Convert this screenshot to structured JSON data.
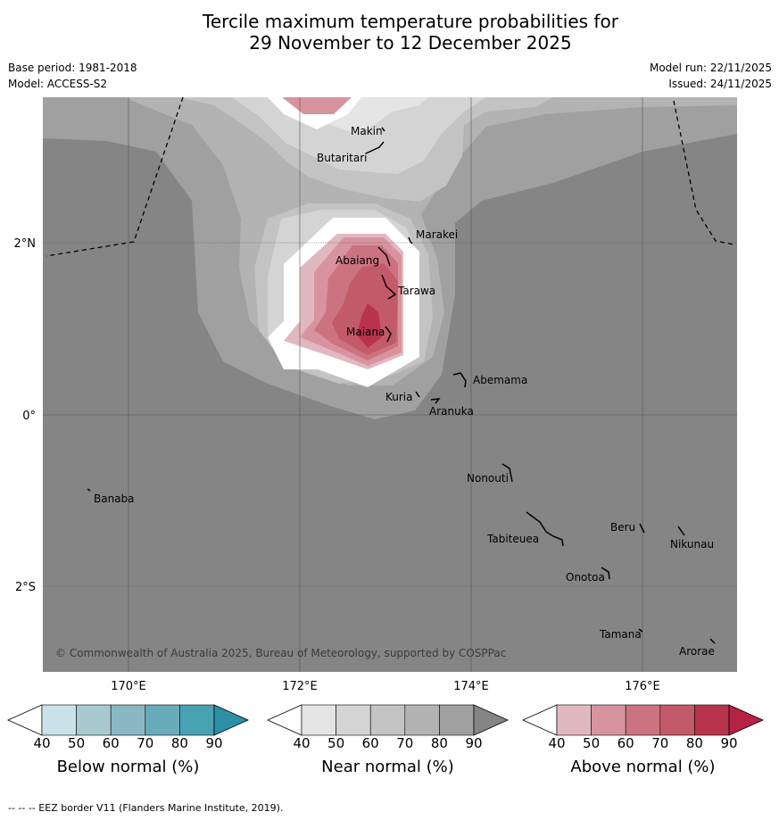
{
  "title": {
    "line1": "Tercile maximum temperature probabilities for",
    "line2": "29 November to 12 December 2025"
  },
  "meta": {
    "base_period": "Base period: 1981-2018",
    "model": "Model: ACCESS-S2",
    "model_run": "Model run: 22/11/2025",
    "issued": "Issued: 24/11/2025"
  },
  "axes": {
    "lat_labels": [
      "2°N",
      "0°",
      "2°S"
    ],
    "lon_labels": [
      "170°E",
      "172°E",
      "174°E",
      "176°E"
    ]
  },
  "places": [
    {
      "name": "Makin"
    },
    {
      "name": "Butaritari"
    },
    {
      "name": "Marakei"
    },
    {
      "name": "Abaiang"
    },
    {
      "name": "Tarawa"
    },
    {
      "name": "Maiana"
    },
    {
      "name": "Abemama"
    },
    {
      "name": "Kuria"
    },
    {
      "name": "Aranuka"
    },
    {
      "name": "Nonouti"
    },
    {
      "name": "Banaba"
    },
    {
      "name": "Beru"
    },
    {
      "name": "Tabiteuea"
    },
    {
      "name": "Nikunau"
    },
    {
      "name": "Onotoa"
    },
    {
      "name": "Tamana"
    },
    {
      "name": "Arorae"
    }
  ],
  "copyright": "© Commonwealth of Australia 2025, Bureau of Meteorology, supported by COSPPac",
  "legends": [
    {
      "label": "Below normal (%)",
      "ticks": [
        "40",
        "50",
        "60",
        "70",
        "80",
        "90"
      ],
      "colors": [
        "#ffffff",
        "#c9e2ea",
        "#a8c9d0",
        "#89b8c4",
        "#6aabba",
        "#48a2b4",
        "#2c8fa6"
      ]
    },
    {
      "label": "Near normal (%)",
      "ticks": [
        "40",
        "50",
        "60",
        "70",
        "80",
        "90"
      ],
      "colors": [
        "#ffffff",
        "#e4e4e4",
        "#d4d4d4",
        "#c3c3c3",
        "#b3b3b3",
        "#a0a0a0",
        "#858585"
      ]
    },
    {
      "label": "Above normal (%)",
      "ticks": [
        "40",
        "50",
        "60",
        "70",
        "80",
        "90"
      ],
      "colors": [
        "#ffffff",
        "#e2b8c0",
        "#d8949e",
        "#cb7380",
        "#c35a6a",
        "#b9334c",
        "#b52244"
      ]
    }
  ],
  "footer": "--  --  -- EEZ border V11 (Flanders Marine Institute, 2019)."
}
